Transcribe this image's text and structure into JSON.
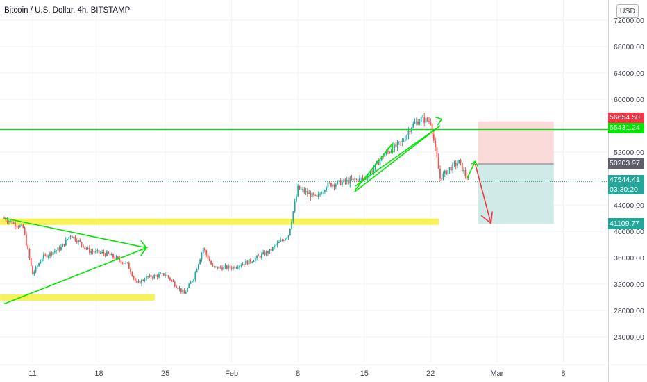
{
  "header": {
    "title": "Bitcoin / U.S. Dollar, 4h, BITSTAMP",
    "currency_button": "USD"
  },
  "price_tags": {
    "stop_loss": "56654.50",
    "resistance": "55431.24",
    "entry": "50203.97",
    "last_price": "47544.41",
    "countdown": "03:30:20",
    "target": "41109.77"
  },
  "colors": {
    "up": "#26a69a",
    "down": "#ef5350",
    "annotation_green": "#00e600",
    "annotation_red": "#f23645",
    "zone_yellow": "#f7f03c",
    "profit_zone": "#cde9e6",
    "loss_zone": "#fbd6d6"
  },
  "chart_data": {
    "type": "candlestick",
    "title": "Bitcoin / U.S. Dollar, 4h, BITSTAMP",
    "ylim": [
      20000,
      74000
    ],
    "y_ticks": [
      "72000.00",
      "68000.00",
      "64000.00",
      "60000.00",
      "56000.00",
      "52000.00",
      "48000.00",
      "44000.00",
      "40000.00",
      "36000.00",
      "32000.00",
      "28000.00",
      "24000.00"
    ],
    "x_ticks": [
      "11",
      "18",
      "25",
      "Feb",
      "8",
      "15",
      "22",
      "Mar",
      "8"
    ],
    "grid": true,
    "price_path": [
      [
        "Jan 8",
        42000
      ],
      [
        "Jan 10",
        40500
      ],
      [
        "Jan 11",
        33500
      ],
      [
        "Jan 12",
        36000
      ],
      [
        "Jan 14",
        37500
      ],
      [
        "Jan 15",
        39500
      ],
      [
        "Jan 17",
        37000
      ],
      [
        "Jan 19",
        36500
      ],
      [
        "Jan 21",
        35000
      ],
      [
        "Jan 22",
        32000
      ],
      [
        "Jan 23",
        33000
      ],
      [
        "Jan 25",
        33500
      ],
      [
        "Jan 26",
        32000
      ],
      [
        "Jan 27",
        30500
      ],
      [
        "Jan 28",
        33000
      ],
      [
        "Jan 29",
        37500
      ],
      [
        "Jan 30",
        34500
      ],
      [
        "Feb 1",
        34500
      ],
      [
        "Feb 3",
        35500
      ],
      [
        "Feb 5",
        37000
      ],
      [
        "Feb 7",
        39500
      ],
      [
        "Feb 8",
        46500
      ],
      [
        "Feb 10",
        45000
      ],
      [
        "Feb 11",
        47000
      ],
      [
        "Feb 13",
        47500
      ],
      [
        "Feb 15",
        48000
      ],
      [
        "Feb 16",
        49500
      ],
      [
        "Feb 17",
        51500
      ],
      [
        "Feb 19",
        53500
      ],
      [
        "Feb 20",
        56000
      ],
      [
        "Feb 21",
        57000
      ],
      [
        "Feb 22",
        56654.5
      ],
      [
        "Feb 23",
        48000
      ],
      [
        "Feb 24",
        49500
      ],
      [
        "Feb 25",
        50500
      ],
      [
        "Feb 26",
        47544.41
      ]
    ],
    "horizontal_lines": [
      {
        "label": "resistance",
        "value": 55431.24
      },
      {
        "label": "last",
        "value": 47544.41
      }
    ],
    "support_zones": [
      {
        "from": "Jan 8",
        "to": "Feb 22",
        "value": 41500
      },
      {
        "from": "Jan 8",
        "to": "Jan 23",
        "value": 30000
      }
    ],
    "position": {
      "type": "short",
      "entry": 50203.97,
      "stop": 56654.5,
      "target": 41109.77,
      "from": "Feb 27",
      "to": "Mar 7"
    }
  }
}
